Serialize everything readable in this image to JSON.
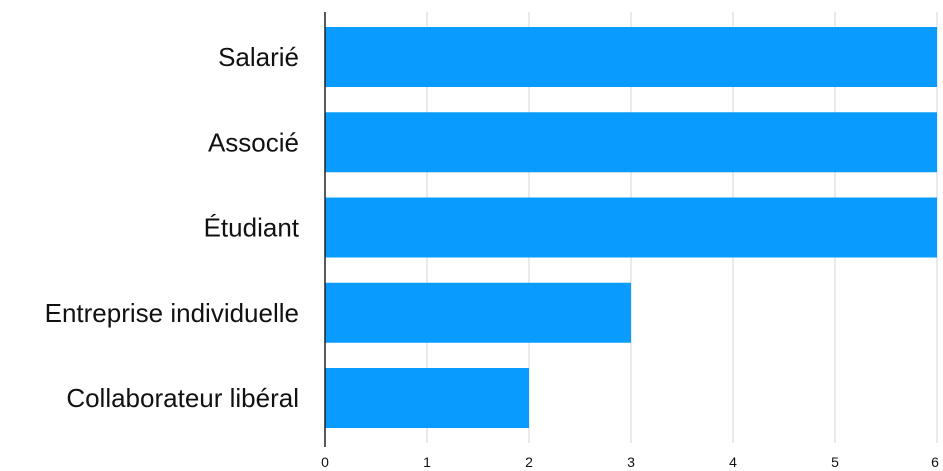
{
  "colors": {
    "bar": "#0a9bff",
    "grid": "#d4d4d4",
    "axis": "#222222",
    "text": "#111111"
  },
  "chart_data": {
    "type": "bar",
    "orientation": "horizontal",
    "categories": [
      "Salarié",
      "Associé",
      "Étudiant",
      "Entreprise individuelle",
      "Collaborateur libéral"
    ],
    "values": [
      6,
      6,
      6,
      3,
      2
    ],
    "xlim": [
      0,
      6
    ],
    "xticks": [
      0,
      1,
      2,
      3,
      4,
      5,
      6
    ],
    "grid": true,
    "title": "",
    "xlabel": "",
    "ylabel": ""
  }
}
